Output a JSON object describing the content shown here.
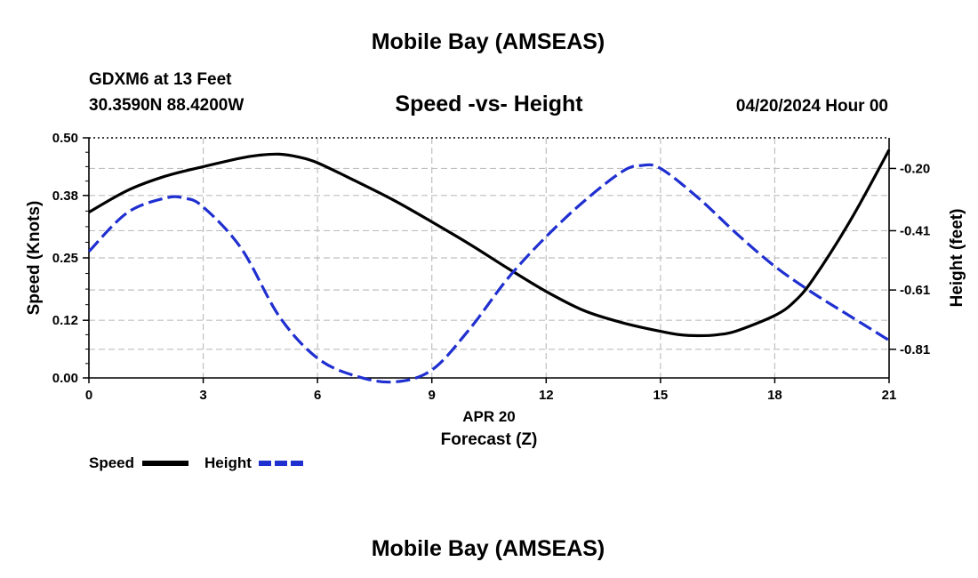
{
  "colors": {
    "speed": "#000000",
    "height": "#1f2fd0",
    "grid": "#bfbfbf"
  },
  "header": {
    "title": "Mobile Bay (AMSEAS)",
    "station": "GDXM6 at 13 Feet",
    "coords": "30.3590N  88.4200W",
    "subtitle": "Speed -vs- Height",
    "datetime": "04/20/2024 Hour 00"
  },
  "footer_title": "Mobile Bay (AMSEAS)",
  "chart_data": {
    "type": "line",
    "title": "Speed -vs- Height",
    "xlabel": "Forecast (Z)",
    "xdate": "APR 20",
    "ylabel": "Speed (Knots)",
    "y2label": "Height (feet)",
    "xlim": [
      0,
      21
    ],
    "ylim": [
      0,
      0.5
    ],
    "y2lim": [
      -0.9066,
      -0.0967
    ],
    "x_ticks": [
      "0",
      "3",
      "6",
      "9",
      "12",
      "15",
      "18",
      "21"
    ],
    "y_ticks": [
      "0.00",
      "0.12",
      "0.25",
      "0.38",
      "0.50"
    ],
    "y2_ticks": [
      "-0.20",
      "-0.41",
      "-0.61",
      "-0.81"
    ],
    "grid": true,
    "legend": {
      "position": "bottom-left",
      "speed_label": "Speed",
      "height_label": "Height"
    },
    "series": [
      {
        "name": "Speed",
        "axis": "left",
        "style": "solid",
        "x": [
          0,
          1,
          2,
          3,
          4,
          4.5,
          5,
          5.5,
          6,
          7,
          8,
          9,
          10,
          11,
          12,
          13,
          14,
          15,
          15.5,
          16,
          16.5,
          17,
          18,
          18.5,
          19,
          20,
          21
        ],
        "values": [
          0.345,
          0.39,
          0.42,
          0.44,
          0.458,
          0.464,
          0.466,
          0.46,
          0.448,
          0.41,
          0.37,
          0.325,
          0.278,
          0.228,
          0.18,
          0.14,
          0.115,
          0.097,
          0.09,
          0.088,
          0.09,
          0.098,
          0.13,
          0.158,
          0.205,
          0.33,
          0.475
        ]
      },
      {
        "name": "Height",
        "axis": "right",
        "style": "dashed",
        "x": [
          0,
          1,
          2,
          2.5,
          3,
          4,
          5,
          6,
          7,
          8,
          9,
          10,
          11,
          12,
          13,
          14,
          14.5,
          15,
          16,
          17,
          18,
          19,
          20,
          21
        ],
        "values": [
          -0.48,
          -0.35,
          -0.3,
          -0.3,
          -0.33,
          -0.47,
          -0.7,
          -0.84,
          -0.9,
          -0.92,
          -0.88,
          -0.74,
          -0.57,
          -0.43,
          -0.31,
          -0.21,
          -0.19,
          -0.2,
          -0.3,
          -0.42,
          -0.53,
          -0.62,
          -0.7,
          -0.78
        ]
      }
    ]
  }
}
